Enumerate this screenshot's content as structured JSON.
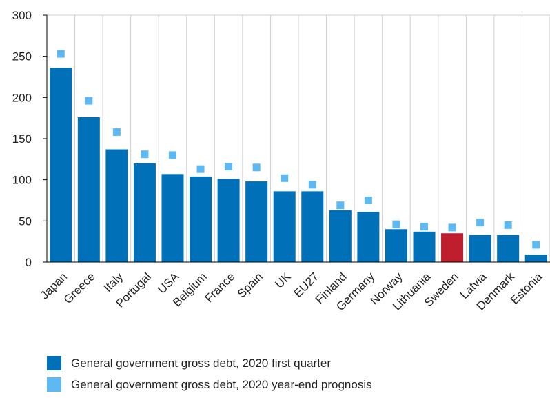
{
  "chart_data": {
    "type": "bar",
    "title": "",
    "xlabel": "",
    "ylabel": "",
    "ylim": [
      0,
      300
    ],
    "yticks": [
      0,
      50,
      100,
      150,
      200,
      250,
      300
    ],
    "grid": "vertical",
    "legend_position": "bottom",
    "categories": [
      "Japan",
      "Greece",
      "Italy",
      "Portugal",
      "USA",
      "Belgium",
      "France",
      "Spain",
      "UK",
      "EU27",
      "Finland",
      "Germany",
      "Norway",
      "Lithuania",
      "Sweden",
      "Latvia",
      "Denmark",
      "Estonia"
    ],
    "highlight_category": "Sweden",
    "series": [
      {
        "name": "General government gross debt, 2020 first quarter",
        "type": "bar",
        "color": "#0070b8",
        "highlight_color": "#be1e2d",
        "values": [
          236,
          176,
          137,
          120,
          107,
          104,
          101,
          98,
          86,
          86,
          63,
          61,
          40,
          37,
          35,
          33,
          33,
          9
        ]
      },
      {
        "name": "General government gross debt, 2020 year-end prognosis",
        "type": "marker",
        "color": "#5eb8f2",
        "values": [
          253,
          196,
          158,
          131,
          130,
          113,
          116,
          115,
          102,
          94,
          69,
          75,
          46,
          43,
          42,
          48,
          45,
          21
        ]
      }
    ]
  }
}
